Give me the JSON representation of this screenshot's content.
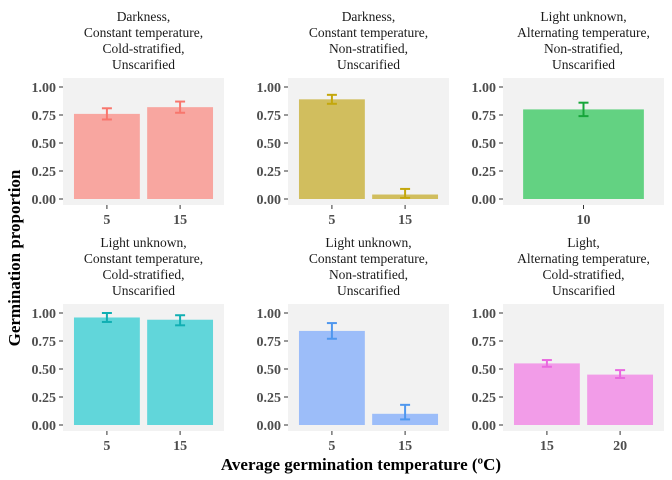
{
  "chart_data": {
    "type": "bar",
    "xlabel": "Average germination temperature (ºC)",
    "ylabel": "Germination proportion",
    "ylim": [
      0,
      1
    ],
    "yticks": [
      "0.00",
      "0.25",
      "0.50",
      "0.75",
      "1.00"
    ],
    "grid": false,
    "legend": "none",
    "panels": [
      {
        "title": [
          "Darkness,",
          "Constant temperature,",
          "Cold-stratified,",
          "Unscarified"
        ],
        "color": "#F8A6A0",
        "err_color": "#F8766D",
        "categories": [
          "5",
          "15"
        ],
        "values": [
          0.76,
          0.82
        ],
        "err_low": [
          0.71,
          0.77
        ],
        "err_high": [
          0.81,
          0.87
        ]
      },
      {
        "title": [
          "Darkness,",
          "Constant temperature,",
          "Non-stratified,",
          "Unscarified"
        ],
        "color": "#D1BE5E",
        "err_color": "#C4A70C",
        "categories": [
          "5",
          "15"
        ],
        "values": [
          0.89,
          0.04
        ],
        "err_low": [
          0.85,
          0.01
        ],
        "err_high": [
          0.93,
          0.09
        ]
      },
      {
        "title": [
          "Light unknown,",
          "Alternating temperature,",
          "Non-stratified,",
          "Unscarified"
        ],
        "color": "#63D282",
        "err_color": "#17A63A",
        "categories": [
          "10"
        ],
        "values": [
          0.8
        ],
        "err_low": [
          0.74
        ],
        "err_high": [
          0.86
        ]
      },
      {
        "title": [
          "Light unknown,",
          "Constant temperature,",
          "Cold-stratified,",
          "Unscarified"
        ],
        "color": "#61D6DA",
        "err_color": "#10AFB3",
        "categories": [
          "5",
          "15"
        ],
        "values": [
          0.96,
          0.94
        ],
        "err_low": [
          0.92,
          0.89
        ],
        "err_high": [
          1.0,
          0.98
        ]
      },
      {
        "title": [
          "Light unknown,",
          "Constant temperature,",
          "Non-stratified,",
          "Unscarified"
        ],
        "color": "#9CBDF9",
        "err_color": "#4F97EE",
        "categories": [
          "5",
          "15"
        ],
        "values": [
          0.84,
          0.1
        ],
        "err_low": [
          0.77,
          0.05
        ],
        "err_high": [
          0.91,
          0.18
        ]
      },
      {
        "title": [
          "Light,",
          "Alternating temperature,",
          "Cold-stratified,",
          "Unscarified"
        ],
        "color": "#F29CE8",
        "err_color": "#E968DF",
        "categories": [
          "15",
          "20"
        ],
        "values": [
          0.55,
          0.45
        ],
        "err_low": [
          0.52,
          0.42
        ],
        "err_high": [
          0.58,
          0.49
        ]
      }
    ]
  }
}
